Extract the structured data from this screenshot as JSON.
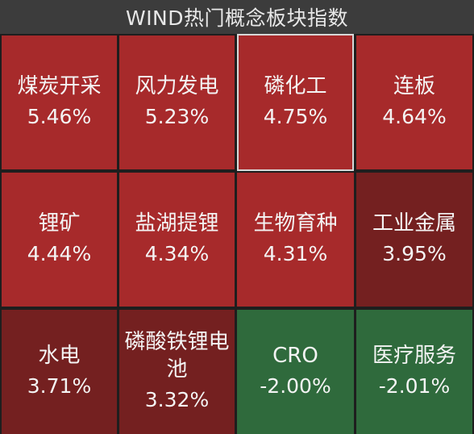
{
  "title": "WIND热门概念板块指数",
  "tiles": [
    {
      "name": "煤炭开采",
      "pct": "5.46%",
      "color": "#a72a2b"
    },
    {
      "name": "风力发电",
      "pct": "5.23%",
      "color": "#a72a2b"
    },
    {
      "name": "磷化工",
      "pct": "4.75%",
      "color": "#a72a2b"
    },
    {
      "name": "连板",
      "pct": "4.64%",
      "color": "#a72a2b"
    },
    {
      "name": "锂矿",
      "pct": "4.44%",
      "color": "#a72a2b"
    },
    {
      "name": "盐湖提锂",
      "pct": "4.34%",
      "color": "#a72a2b"
    },
    {
      "name": "生物育种",
      "pct": "4.31%",
      "color": "#a72a2b"
    },
    {
      "name": "工业金属",
      "pct": "3.95%",
      "color": "#742020"
    },
    {
      "name": "水电",
      "pct": "3.71%",
      "color": "#742020"
    },
    {
      "name": "磷酸铁锂电池",
      "pct": "3.32%",
      "color": "#742020"
    },
    {
      "name": "CRO",
      "pct": "-2.00%",
      "color": "#2f6a3c"
    },
    {
      "name": "医疗服务",
      "pct": "-2.01%",
      "color": "#2f6a3c"
    }
  ]
}
